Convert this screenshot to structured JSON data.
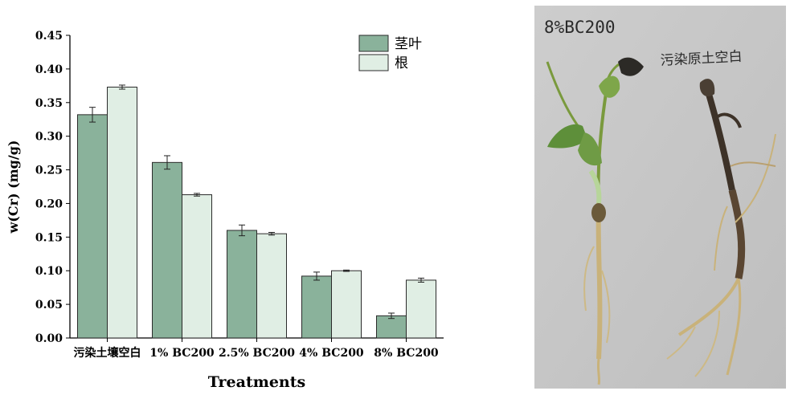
{
  "chart_data": {
    "type": "bar",
    "categories": [
      "污染土壤空白",
      "1% BC200",
      "2.5% BC200",
      "4% BC200",
      "8% BC200"
    ],
    "series": [
      {
        "name": "茎叶",
        "values": [
          0.332,
          0.261,
          0.16,
          0.092,
          0.033
        ],
        "errors": [
          0.011,
          0.01,
          0.008,
          0.006,
          0.004
        ],
        "color": "#8ab29b"
      },
      {
        "name": "根",
        "values": [
          0.373,
          0.213,
          0.155,
          0.1,
          0.086
        ],
        "errors": [
          0.003,
          0.002,
          0.002,
          0.001,
          0.003
        ],
        "color": "#e0eee4"
      }
    ],
    "title": "",
    "xlabel": "Treatments",
    "ylabel": "w(Cr) (mg/g)",
    "ylim": [
      0,
      0.45
    ],
    "yticks": [
      "0.00",
      "0.05",
      "0.10",
      "0.15",
      "0.20",
      "0.25",
      "0.30",
      "0.35",
      "0.40",
      "0.45"
    ],
    "grid": false,
    "legend_position": "top-right"
  },
  "photo": {
    "label_left": "8%BC200",
    "label_right": "污染原土空白"
  },
  "colors": {
    "bar_edge": "#2b2b2b",
    "photo_bg": "#c5c5c5",
    "stem_green": "#6d8f3c",
    "root_tan": "#c9b27a",
    "withered_dark": "#3d3228"
  }
}
